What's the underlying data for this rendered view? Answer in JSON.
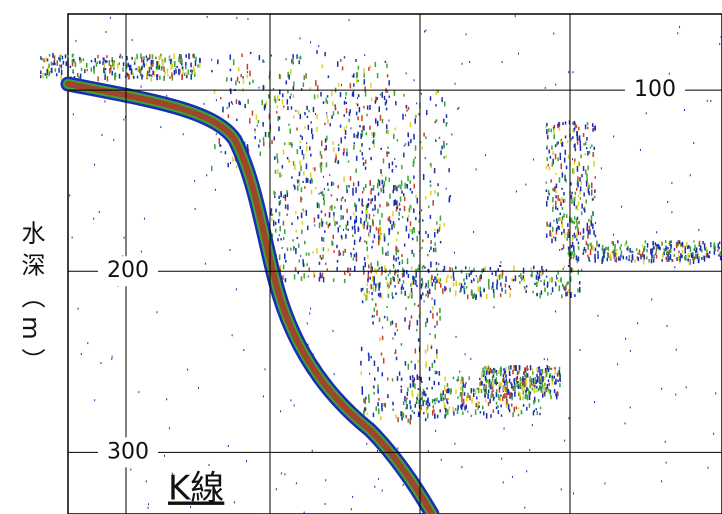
{
  "chart_data": {
    "type": "echogram",
    "y_label": "水深（m）",
    "annotation": "K線",
    "ylim": [
      58,
      334
    ],
    "yticks": [
      100,
      200,
      300
    ],
    "grid": true
  }
}
